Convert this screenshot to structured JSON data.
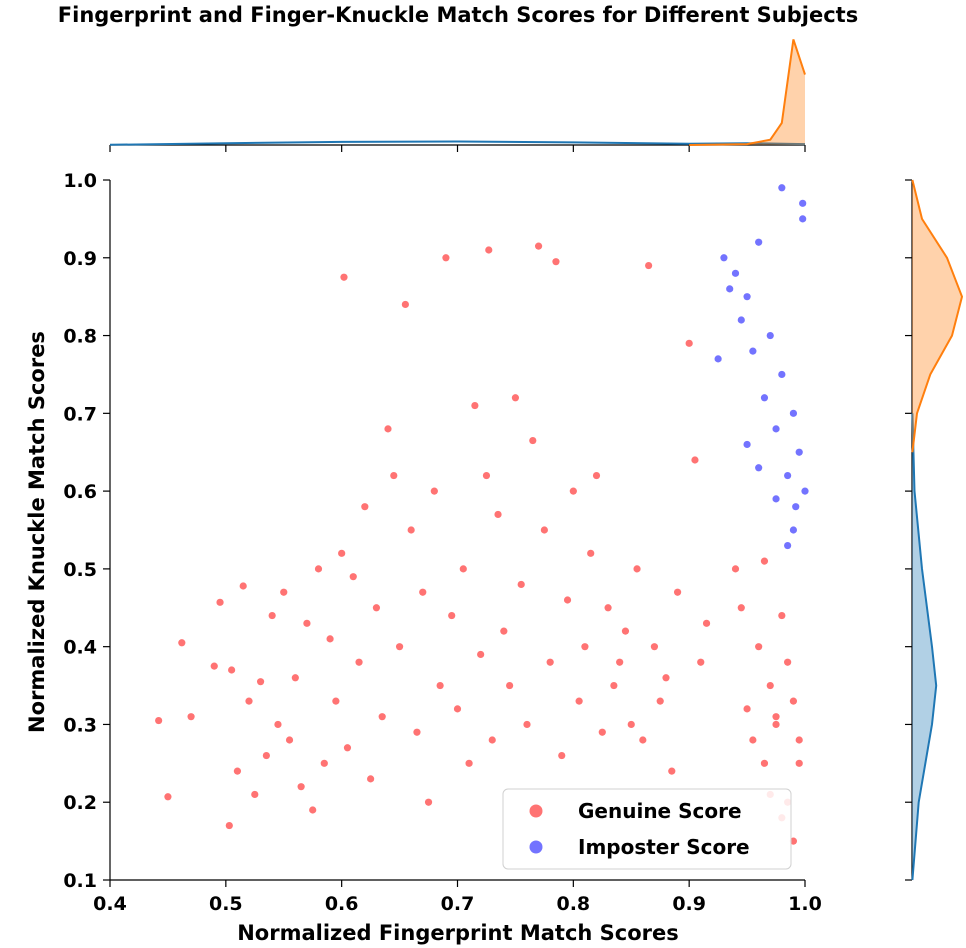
{
  "chart_data": {
    "type": "scatter",
    "title": "Fingerprint and Finger-Knuckle Match Scores for Different Subjects",
    "xlabel": "Normalized Fingerprint Match Scores",
    "ylabel": "Normalized Knuckle Match Scores",
    "xlim": [
      0.4,
      1.0
    ],
    "ylim": [
      0.1,
      1.0
    ],
    "xticks": [
      "0.4",
      "0.5",
      "0.6",
      "0.7",
      "0.8",
      "0.9",
      "1.0"
    ],
    "yticks": [
      "0.1",
      "0.2",
      "0.3",
      "0.4",
      "0.5",
      "0.6",
      "0.7",
      "0.8",
      "0.9",
      "1.0"
    ],
    "legend": {
      "placement": "lower right",
      "entries": [
        "Genuine Score",
        "Imposter Score"
      ]
    },
    "colors": {
      "genuine": "#ff0000",
      "imposter": "#0000ff",
      "kde_blue": "#1f77b4",
      "kde_orange": "#ff7f0e"
    },
    "series": [
      {
        "name": "Genuine Score",
        "color": "#ff0000",
        "x": [
          0.442,
          0.45,
          0.462,
          0.47,
          0.49,
          0.495,
          0.503,
          0.505,
          0.51,
          0.515,
          0.52,
          0.525,
          0.53,
          0.535,
          0.54,
          0.545,
          0.55,
          0.555,
          0.56,
          0.565,
          0.57,
          0.575,
          0.58,
          0.585,
          0.59,
          0.595,
          0.6,
          0.602,
          0.605,
          0.61,
          0.615,
          0.62,
          0.625,
          0.63,
          0.635,
          0.64,
          0.645,
          0.65,
          0.655,
          0.66,
          0.665,
          0.67,
          0.675,
          0.68,
          0.685,
          0.69,
          0.695,
          0.7,
          0.705,
          0.71,
          0.715,
          0.72,
          0.725,
          0.727,
          0.73,
          0.735,
          0.74,
          0.745,
          0.75,
          0.755,
          0.76,
          0.765,
          0.77,
          0.775,
          0.78,
          0.785,
          0.79,
          0.795,
          0.8,
          0.805,
          0.81,
          0.815,
          0.82,
          0.825,
          0.83,
          0.835,
          0.84,
          0.845,
          0.85,
          0.855,
          0.86,
          0.865,
          0.87,
          0.875,
          0.88,
          0.885,
          0.89,
          0.9,
          0.905,
          0.91,
          0.915,
          0.94,
          0.945,
          0.95,
          0.955,
          0.96,
          0.965,
          0.97,
          0.975,
          0.98,
          0.985,
          0.99,
          0.995,
          0.965,
          0.975,
          0.985,
          0.99,
          0.97,
          0.98,
          0.995
        ],
        "y": [
          0.305,
          0.207,
          0.405,
          0.31,
          0.375,
          0.457,
          0.17,
          0.37,
          0.24,
          0.478,
          0.33,
          0.21,
          0.355,
          0.26,
          0.44,
          0.3,
          0.47,
          0.28,
          0.36,
          0.22,
          0.43,
          0.19,
          0.5,
          0.25,
          0.41,
          0.33,
          0.52,
          0.875,
          0.27,
          0.49,
          0.38,
          0.58,
          0.23,
          0.45,
          0.31,
          0.68,
          0.62,
          0.4,
          0.84,
          0.55,
          0.29,
          0.47,
          0.2,
          0.6,
          0.35,
          0.9,
          0.44,
          0.32,
          0.5,
          0.25,
          0.71,
          0.39,
          0.62,
          0.91,
          0.28,
          0.57,
          0.42,
          0.35,
          0.72,
          0.48,
          0.3,
          0.665,
          0.915,
          0.55,
          0.38,
          0.895,
          0.26,
          0.46,
          0.6,
          0.33,
          0.4,
          0.52,
          0.62,
          0.29,
          0.45,
          0.35,
          0.38,
          0.42,
          0.3,
          0.5,
          0.28,
          0.89,
          0.4,
          0.33,
          0.36,
          0.24,
          0.47,
          0.79,
          0.64,
          0.38,
          0.43,
          0.5,
          0.45,
          0.32,
          0.28,
          0.4,
          0.51,
          0.35,
          0.3,
          0.44,
          0.38,
          0.33,
          0.25,
          0.25,
          0.31,
          0.2,
          0.15,
          0.21,
          0.18,
          0.28
        ]
      },
      {
        "name": "Imposter Score",
        "color": "#0000ff",
        "x": [
          0.93,
          0.94,
          0.95,
          0.96,
          0.97,
          0.98,
          0.99,
          0.995,
          1.0,
          0.935,
          0.945,
          0.955,
          0.965,
          0.975,
          0.985,
          0.992,
          0.998,
          0.925,
          0.95,
          0.98,
          0.99,
          0.998,
          0.96,
          0.975,
          0.985
        ],
        "y": [
          0.9,
          0.88,
          0.85,
          0.92,
          0.8,
          0.75,
          0.7,
          0.65,
          0.6,
          0.86,
          0.82,
          0.78,
          0.72,
          0.68,
          0.62,
          0.58,
          0.95,
          0.77,
          0.66,
          0.99,
          0.55,
          0.97,
          0.63,
          0.59,
          0.53
        ]
      }
    ],
    "marginals": {
      "top_kde": [
        {
          "name": "Genuine Score",
          "color": "#1f77b4",
          "x": [
            0.4,
            0.5,
            0.6,
            0.7,
            0.8,
            0.9,
            0.95,
            1.0
          ],
          "density": [
            0.02,
            0.2,
            0.35,
            0.4,
            0.3,
            0.15,
            0.2,
            0.1
          ]
        },
        {
          "name": "Imposter Score",
          "color": "#ff7f0e",
          "x": [
            0.9,
            0.95,
            0.97,
            0.98,
            0.99,
            1.0
          ],
          "density": [
            0.0,
            0.1,
            0.6,
            2.5,
            12.0,
            8.0
          ]
        }
      ],
      "right_kde": [
        {
          "name": "Genuine Score",
          "color": "#1f77b4",
          "y": [
            0.1,
            0.2,
            0.3,
            0.35,
            0.4,
            0.5,
            0.6,
            0.7
          ],
          "density": [
            0.05,
            0.8,
            2.4,
            2.9,
            2.4,
            1.2,
            0.3,
            0.05
          ]
        },
        {
          "name": "Imposter Score",
          "color": "#ff7f0e",
          "y": [
            0.65,
            0.7,
            0.75,
            0.8,
            0.85,
            0.9,
            0.95,
            1.0
          ],
          "density": [
            0.05,
            0.6,
            2.2,
            4.8,
            6.0,
            4.2,
            1.2,
            0.05
          ]
        }
      ]
    }
  }
}
